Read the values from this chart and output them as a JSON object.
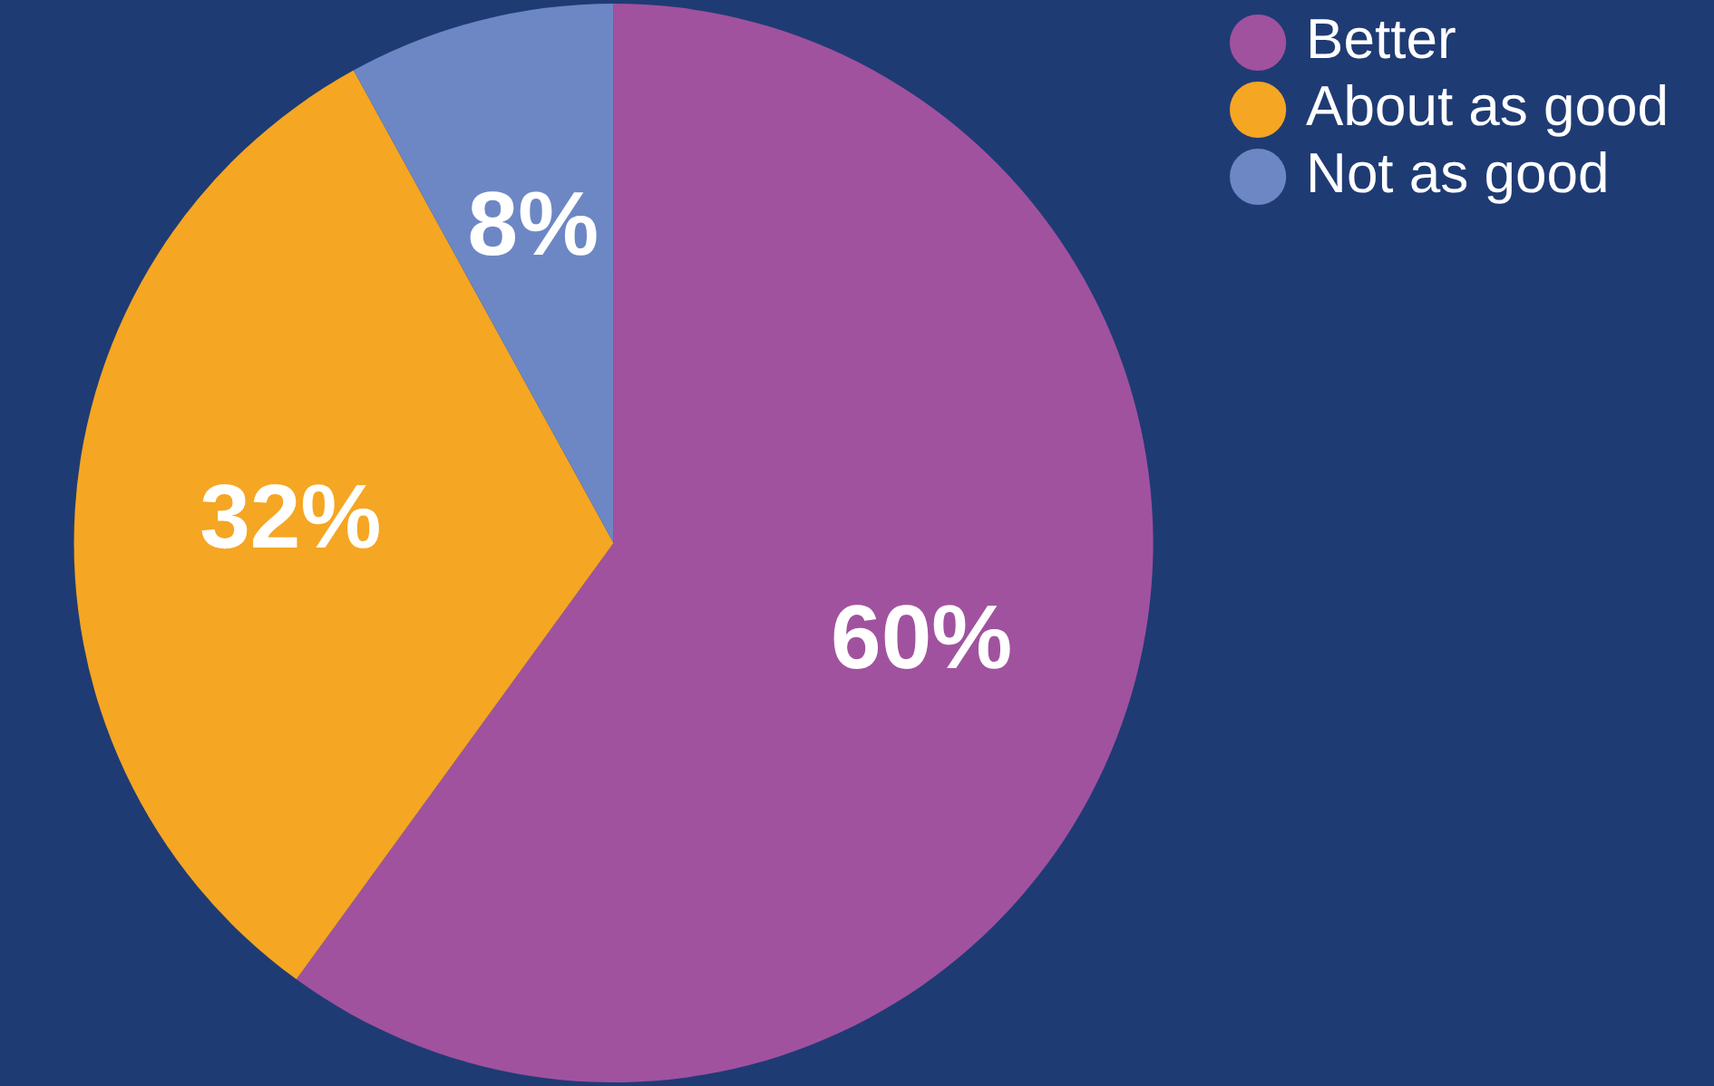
{
  "chart_data": {
    "type": "pie",
    "categories": [
      "Better",
      "About as good",
      "Not as good"
    ],
    "values": [
      60,
      32,
      8
    ],
    "colors": [
      "#a0529f",
      "#f5a623",
      "#6d87c4"
    ],
    "value_labels": [
      "60%",
      "32%",
      "8%"
    ],
    "legend": "top right"
  }
}
